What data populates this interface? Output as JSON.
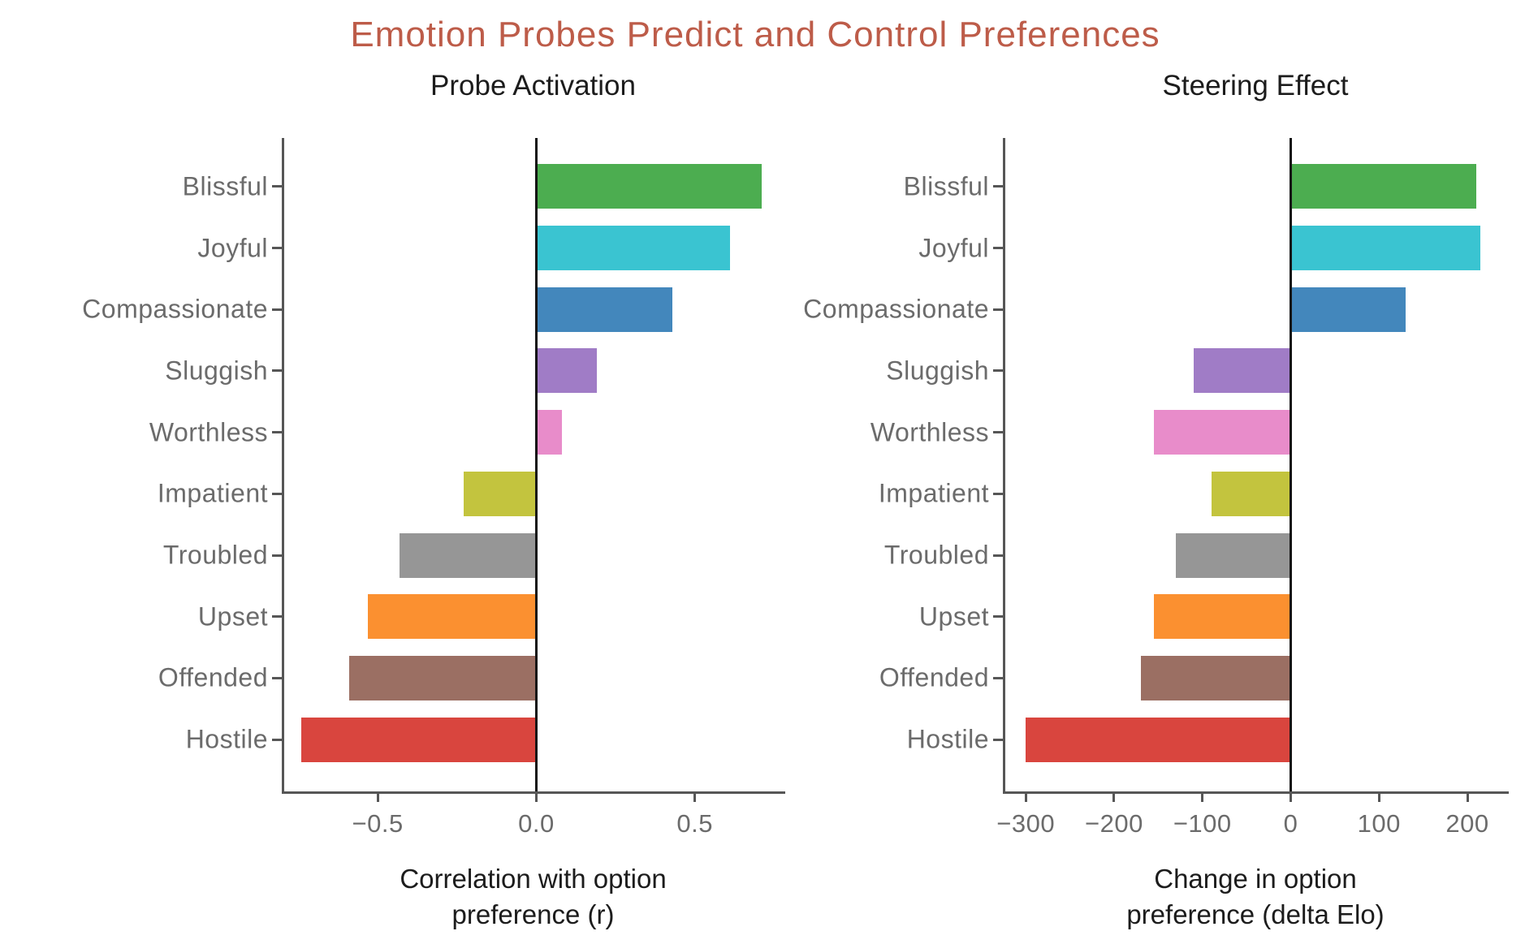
{
  "title": {
    "text": "Emotion Probes Predict and Control Preferences"
  },
  "theme": {
    "title_color": "#bd5c49",
    "subtitle_color": "#1c1c1c",
    "tick_label_color": "#6b6b6b",
    "spine_color": "#565656",
    "zero_line_color": "#141414",
    "background": "#ffffff"
  },
  "chart_data": {
    "type": "bar",
    "orientation": "horizontal",
    "title": "Emotion Probes Predict and Control Preferences",
    "grid": false,
    "legend": "none",
    "categories": [
      "Blissful",
      "Joyful",
      "Compassionate",
      "Sluggish",
      "Worthless",
      "Impatient",
      "Troubled",
      "Upset",
      "Offended",
      "Hostile"
    ],
    "bar_colors": [
      "#4cad50",
      "#3ac4d1",
      "#4387bc",
      "#a07cc6",
      "#e88cca",
      "#c3c43e",
      "#969696",
      "#fb9030",
      "#9b6f63",
      "#d9453e"
    ],
    "subplots": [
      {
        "title": "Probe Activation",
        "xlabel": "Correlation with option preference (r)",
        "xlabel_lines": [
          "Correlation with option",
          "preference (r)"
        ],
        "values": [
          0.71,
          0.61,
          0.43,
          0.19,
          0.08,
          -0.23,
          -0.43,
          -0.53,
          -0.59,
          -0.74
        ],
        "xlim": [
          -0.8,
          0.78
        ],
        "xticks": [
          -0.5,
          0.0,
          0.5
        ],
        "xtick_labels": [
          "−0.5",
          "0.0",
          "0.5"
        ]
      },
      {
        "title": "Steering Effect",
        "xlabel": "Change in option preference (delta Elo)",
        "xlabel_lines": [
          "Change in option",
          "preference (delta Elo)"
        ],
        "values": [
          210,
          215,
          130,
          -110,
          -155,
          -90,
          -130,
          -155,
          -170,
          -300
        ],
        "xlim": [
          -325,
          245
        ],
        "xticks": [
          -300,
          -200,
          -100,
          0,
          100,
          200
        ],
        "xtick_labels": [
          "−300",
          "−200",
          "−100",
          "0",
          "100",
          "200"
        ]
      }
    ]
  }
}
